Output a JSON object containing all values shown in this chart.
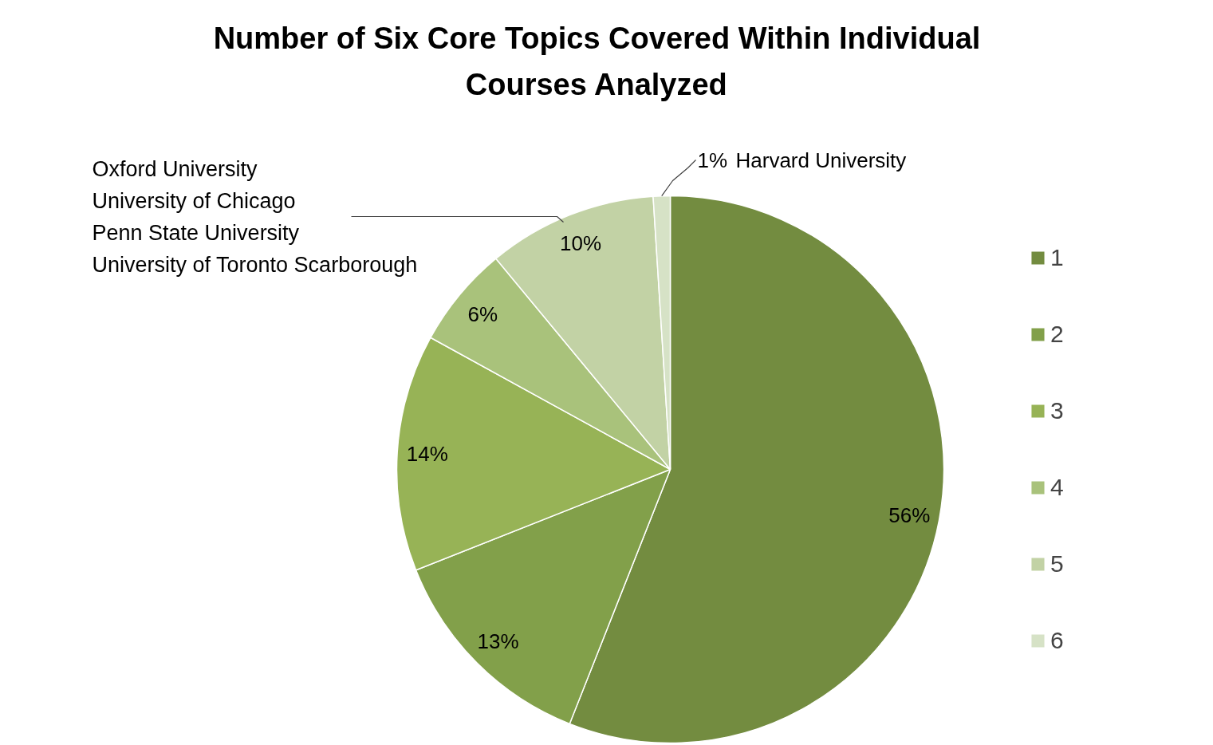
{
  "chart_data": {
    "type": "pie",
    "title": "Number of Six Core Topics Covered Within Individual Courses Analyzed",
    "categories": [
      "1",
      "2",
      "3",
      "4",
      "5",
      "6"
    ],
    "values": [
      56,
      13,
      14,
      6,
      10,
      1
    ],
    "colors": [
      "#738c40",
      "#82a04a",
      "#97b356",
      "#a9c27b",
      "#c2d2a5",
      "#d6e2c6"
    ],
    "value_labels": [
      "56%",
      "13%",
      "14%",
      "6%",
      "10%",
      "1%"
    ],
    "legend": "right",
    "annotations": [
      "Oxford University",
      "University of Chicago",
      "Penn State University",
      "University of Toronto Scarborough",
      "Harvard University"
    ]
  }
}
